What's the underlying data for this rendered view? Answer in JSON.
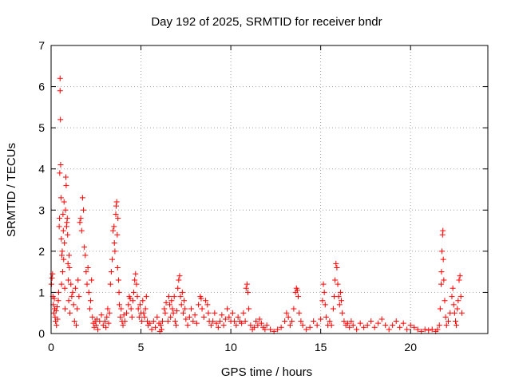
{
  "colors": {
    "series": "#ff0000",
    "axis": "#000000",
    "grid": "#a0a0a0",
    "background": "#ffffff"
  },
  "chart_data": {
    "type": "scatter",
    "title": "Day 192 of 2025, SRMTID for receiver bndr",
    "xlabel": "GPS time / hours",
    "ylabel": "SRMTID / TECUs",
    "xlim": [
      0,
      24.3
    ],
    "ylim": [
      0,
      7
    ],
    "xticks": [
      0,
      5,
      10,
      15,
      20
    ],
    "yticks": [
      0,
      1,
      2,
      3,
      4,
      5,
      6,
      7
    ],
    "grid": true,
    "marker": "+",
    "legend": "none",
    "series": [
      {
        "name": "SRMTID",
        "points": [
          [
            0.02,
            1.2
          ],
          [
            0.05,
            1.35
          ],
          [
            0.08,
            1.45
          ],
          [
            0.1,
            0.9
          ],
          [
            0.12,
            0.7
          ],
          [
            0.15,
            0.5
          ],
          [
            0.18,
            0.85
          ],
          [
            0.2,
            0.6
          ],
          [
            0.22,
            0.4
          ],
          [
            0.25,
            0.3
          ],
          [
            0.28,
            0.55
          ],
          [
            0.3,
            0.2
          ],
          [
            0.33,
            0.65
          ],
          [
            0.36,
            0.35
          ],
          [
            0.4,
            0.8
          ],
          [
            0.42,
            1.0
          ],
          [
            0.45,
            2.6
          ],
          [
            0.47,
            2.8
          ],
          [
            0.48,
            3.9
          ],
          [
            0.5,
            5.9
          ],
          [
            0.5,
            6.2
          ],
          [
            0.52,
            5.2
          ],
          [
            0.53,
            4.1
          ],
          [
            0.55,
            3.3
          ],
          [
            0.57,
            2.3
          ],
          [
            0.58,
            1.2
          ],
          [
            0.6,
            1.9
          ],
          [
            0.62,
            2.0
          ],
          [
            0.64,
            1.5
          ],
          [
            0.66,
            2.9
          ],
          [
            0.68,
            2.5
          ],
          [
            0.7,
            1.8
          ],
          [
            0.72,
            3.2
          ],
          [
            0.74,
            2.2
          ],
          [
            0.76,
            1.1
          ],
          [
            0.78,
            0.6
          ],
          [
            0.8,
            3.0
          ],
          [
            0.82,
            3.8
          ],
          [
            0.84,
            3.6
          ],
          [
            0.86,
            2.6
          ],
          [
            0.88,
            2.7
          ],
          [
            0.9,
            2.8
          ],
          [
            0.92,
            2.4
          ],
          [
            0.94,
            1.7
          ],
          [
            0.96,
            1.3
          ],
          [
            0.98,
            0.8
          ],
          [
            1.0,
            1.9
          ],
          [
            1.02,
            1.6
          ],
          [
            1.05,
            0.5
          ],
          [
            1.1,
            1.2
          ],
          [
            1.15,
            0.9
          ],
          [
            1.2,
            1.0
          ],
          [
            1.25,
            0.7
          ],
          [
            1.3,
            0.3
          ],
          [
            1.35,
            1.1
          ],
          [
            1.4,
            0.2
          ],
          [
            1.45,
            0.6
          ],
          [
            1.5,
            1.3
          ],
          [
            1.55,
            0.9
          ],
          [
            1.6,
            2.7
          ],
          [
            1.65,
            2.8
          ],
          [
            1.7,
            2.5
          ],
          [
            1.75,
            3.3
          ],
          [
            1.8,
            3.0
          ],
          [
            1.85,
            2.1
          ],
          [
            1.9,
            1.9
          ],
          [
            1.95,
            1.5
          ],
          [
            2.0,
            1.2
          ],
          [
            2.05,
            1.6
          ],
          [
            2.1,
            1.0
          ],
          [
            2.15,
            0.6
          ],
          [
            2.2,
            0.8
          ],
          [
            2.25,
            1.3
          ],
          [
            2.3,
            0.4
          ],
          [
            2.35,
            0.25
          ],
          [
            2.4,
            0.15
          ],
          [
            2.45,
            0.3
          ],
          [
            2.5,
            0.2
          ],
          [
            2.55,
            0.35
          ],
          [
            2.6,
            0.1
          ],
          [
            2.7,
            0.3
          ],
          [
            2.8,
            0.45
          ],
          [
            2.9,
            0.2
          ],
          [
            3.0,
            0.3
          ],
          [
            3.05,
            0.15
          ],
          [
            3.1,
            0.4
          ],
          [
            3.15,
            0.6
          ],
          [
            3.2,
            0.25
          ],
          [
            3.25,
            0.5
          ],
          [
            3.3,
            1.2
          ],
          [
            3.35,
            1.5
          ],
          [
            3.4,
            1.8
          ],
          [
            3.45,
            2.5
          ],
          [
            3.5,
            2.6
          ],
          [
            3.52,
            2.2
          ],
          [
            3.55,
            2.0
          ],
          [
            3.6,
            2.9
          ],
          [
            3.62,
            3.1
          ],
          [
            3.65,
            3.2
          ],
          [
            3.68,
            2.4
          ],
          [
            3.7,
            1.6
          ],
          [
            3.72,
            2.8
          ],
          [
            3.75,
            1.3
          ],
          [
            3.78,
            1.0
          ],
          [
            3.8,
            0.7
          ],
          [
            3.85,
            0.4
          ],
          [
            3.9,
            0.6
          ],
          [
            3.95,
            0.3
          ],
          [
            4.0,
            0.2
          ],
          [
            4.05,
            0.45
          ],
          [
            4.1,
            0.3
          ],
          [
            4.2,
            0.5
          ],
          [
            4.3,
            0.7
          ],
          [
            4.35,
            0.9
          ],
          [
            4.4,
            0.85
          ],
          [
            4.45,
            0.6
          ],
          [
            4.5,
            0.4
          ],
          [
            4.55,
            0.8
          ],
          [
            4.6,
            1.0
          ],
          [
            4.65,
            1.3
          ],
          [
            4.7,
            1.45
          ],
          [
            4.75,
            1.2
          ],
          [
            4.8,
            0.9
          ],
          [
            4.85,
            0.6
          ],
          [
            4.9,
            0.4
          ],
          [
            4.95,
            0.7
          ],
          [
            5.0,
            0.5
          ],
          [
            5.05,
            0.3
          ],
          [
            5.1,
            0.8
          ],
          [
            5.15,
            0.5
          ],
          [
            5.2,
            0.4
          ],
          [
            5.25,
            0.6
          ],
          [
            5.3,
            0.9
          ],
          [
            5.35,
            0.3
          ],
          [
            5.4,
            0.2
          ],
          [
            5.5,
            0.25
          ],
          [
            5.6,
            0.1
          ],
          [
            5.7,
            0.3
          ],
          [
            5.8,
            0.15
          ],
          [
            5.9,
            0.4
          ],
          [
            6.0,
            0.25
          ],
          [
            6.05,
            0.05
          ],
          [
            6.1,
            0.2
          ],
          [
            6.15,
            0.1
          ],
          [
            6.2,
            0.3
          ],
          [
            6.3,
            0.6
          ],
          [
            6.35,
            0.5
          ],
          [
            6.4,
            0.75
          ],
          [
            6.5,
            0.3
          ],
          [
            6.55,
            0.9
          ],
          [
            6.6,
            0.7
          ],
          [
            6.65,
            0.4
          ],
          [
            6.7,
            0.8
          ],
          [
            6.75,
            0.6
          ],
          [
            6.8,
            0.5
          ],
          [
            6.85,
            0.9
          ],
          [
            6.9,
            0.3
          ],
          [
            6.95,
            0.2
          ],
          [
            7.0,
            0.55
          ],
          [
            7.05,
            1.1
          ],
          [
            7.1,
            1.3
          ],
          [
            7.15,
            1.4
          ],
          [
            7.2,
            0.9
          ],
          [
            7.25,
            0.7
          ],
          [
            7.3,
            1.0
          ],
          [
            7.35,
            0.5
          ],
          [
            7.4,
            0.8
          ],
          [
            7.45,
            0.6
          ],
          [
            7.5,
            0.35
          ],
          [
            7.6,
            0.2
          ],
          [
            7.7,
            0.4
          ],
          [
            7.8,
            0.6
          ],
          [
            7.9,
            0.3
          ],
          [
            8.0,
            0.45
          ],
          [
            8.1,
            0.25
          ],
          [
            8.2,
            0.7
          ],
          [
            8.3,
            0.9
          ],
          [
            8.35,
            0.85
          ],
          [
            8.4,
            0.6
          ],
          [
            8.5,
            0.4
          ],
          [
            8.6,
            0.8
          ],
          [
            8.7,
            0.7
          ],
          [
            8.75,
            0.5
          ],
          [
            8.8,
            0.3
          ],
          [
            8.9,
            0.2
          ],
          [
            9.0,
            0.3
          ],
          [
            9.1,
            0.5
          ],
          [
            9.2,
            0.25
          ],
          [
            9.3,
            0.15
          ],
          [
            9.4,
            0.3
          ],
          [
            9.5,
            0.45
          ],
          [
            9.6,
            0.2
          ],
          [
            9.7,
            0.35
          ],
          [
            9.8,
            0.6
          ],
          [
            9.9,
            0.4
          ],
          [
            10.0,
            0.3
          ],
          [
            10.1,
            0.5
          ],
          [
            10.2,
            0.3
          ],
          [
            10.3,
            0.2
          ],
          [
            10.4,
            0.4
          ],
          [
            10.5,
            0.3
          ],
          [
            10.6,
            0.25
          ],
          [
            10.7,
            0.5
          ],
          [
            10.8,
            0.3
          ],
          [
            10.85,
            1.1
          ],
          [
            10.9,
            1.2
          ],
          [
            10.95,
            1.0
          ],
          [
            11.0,
            0.6
          ],
          [
            11.1,
            0.2
          ],
          [
            11.2,
            0.1
          ],
          [
            11.3,
            0.15
          ],
          [
            11.4,
            0.3
          ],
          [
            11.5,
            0.2
          ],
          [
            11.6,
            0.35
          ],
          [
            11.7,
            0.25
          ],
          [
            11.8,
            0.15
          ],
          [
            11.9,
            0.1
          ],
          [
            12.0,
            0.2
          ],
          [
            12.2,
            0.1
          ],
          [
            12.4,
            0.05
          ],
          [
            12.6,
            0.1
          ],
          [
            12.8,
            0.15
          ],
          [
            13.0,
            0.3
          ],
          [
            13.1,
            0.5
          ],
          [
            13.2,
            0.4
          ],
          [
            13.3,
            0.2
          ],
          [
            13.4,
            0.3
          ],
          [
            13.5,
            0.6
          ],
          [
            13.6,
            1.0
          ],
          [
            13.65,
            1.1
          ],
          [
            13.7,
            1.05
          ],
          [
            13.75,
            0.9
          ],
          [
            13.8,
            0.5
          ],
          [
            13.9,
            0.3
          ],
          [
            14.0,
            0.2
          ],
          [
            14.2,
            0.1
          ],
          [
            14.4,
            0.15
          ],
          [
            14.6,
            0.3
          ],
          [
            14.8,
            0.2
          ],
          [
            15.0,
            0.35
          ],
          [
            15.1,
            0.8
          ],
          [
            15.15,
            1.2
          ],
          [
            15.2,
            1.0
          ],
          [
            15.25,
            0.7
          ],
          [
            15.3,
            0.4
          ],
          [
            15.4,
            0.2
          ],
          [
            15.5,
            0.3
          ],
          [
            15.6,
            0.2
          ],
          [
            15.7,
            0.6
          ],
          [
            15.75,
            0.9
          ],
          [
            15.8,
            1.3
          ],
          [
            15.85,
            1.7
          ],
          [
            15.9,
            1.6
          ],
          [
            15.95,
            1.2
          ],
          [
            16.0,
            0.9
          ],
          [
            16.05,
            0.7
          ],
          [
            16.1,
            1.0
          ],
          [
            16.15,
            0.8
          ],
          [
            16.2,
            0.5
          ],
          [
            16.3,
            0.3
          ],
          [
            16.4,
            0.2
          ],
          [
            16.5,
            0.25
          ],
          [
            16.6,
            0.15
          ],
          [
            16.7,
            0.3
          ],
          [
            16.8,
            0.2
          ],
          [
            17.0,
            0.1
          ],
          [
            17.2,
            0.25
          ],
          [
            17.4,
            0.15
          ],
          [
            17.6,
            0.2
          ],
          [
            17.8,
            0.3
          ],
          [
            18.0,
            0.15
          ],
          [
            18.2,
            0.25
          ],
          [
            18.4,
            0.35
          ],
          [
            18.6,
            0.2
          ],
          [
            18.8,
            0.1
          ],
          [
            19.0,
            0.2
          ],
          [
            19.2,
            0.3
          ],
          [
            19.4,
            0.15
          ],
          [
            19.6,
            0.25
          ],
          [
            19.8,
            0.1
          ],
          [
            20.0,
            0.2
          ],
          [
            20.2,
            0.15
          ],
          [
            20.4,
            0.1
          ],
          [
            20.6,
            0.05
          ],
          [
            20.8,
            0.1
          ],
          [
            21.0,
            0.08
          ],
          [
            21.2,
            0.1
          ],
          [
            21.4,
            0.05
          ],
          [
            21.5,
            0.1
          ],
          [
            21.6,
            0.2
          ],
          [
            21.65,
            0.6
          ],
          [
            21.7,
            1.2
          ],
          [
            21.72,
            1.5
          ],
          [
            21.75,
            2.0
          ],
          [
            21.78,
            2.4
          ],
          [
            21.8,
            2.5
          ],
          [
            21.82,
            1.8
          ],
          [
            21.85,
            1.3
          ],
          [
            21.9,
            0.8
          ],
          [
            21.95,
            0.4
          ],
          [
            22.0,
            0.2
          ],
          [
            22.1,
            0.3
          ],
          [
            22.2,
            0.5
          ],
          [
            22.3,
            0.9
          ],
          [
            22.35,
            1.1
          ],
          [
            22.4,
            0.7
          ],
          [
            22.45,
            0.5
          ],
          [
            22.5,
            0.3
          ],
          [
            22.55,
            0.2
          ],
          [
            22.6,
            0.6
          ],
          [
            22.65,
            0.8
          ],
          [
            22.7,
            1.3
          ],
          [
            22.75,
            1.4
          ],
          [
            22.8,
            0.9
          ],
          [
            22.85,
            0.5
          ]
        ]
      }
    ]
  }
}
